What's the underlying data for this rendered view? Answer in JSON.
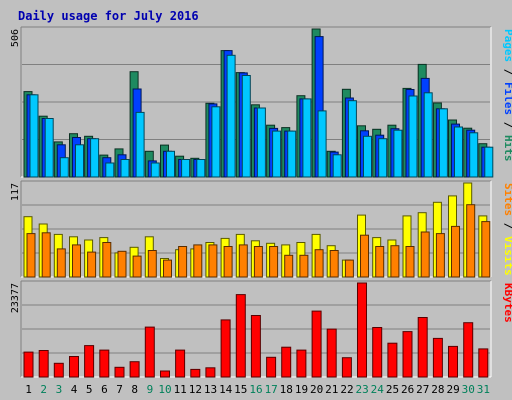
{
  "chart_data": {
    "type": "bar",
    "title": "Daily usage for July 2016",
    "days": [
      "1",
      "2",
      "3",
      "4",
      "5",
      "6",
      "7",
      "8",
      "9",
      "10",
      "11",
      "12",
      "13",
      "14",
      "15",
      "16",
      "17",
      "18",
      "19",
      "20",
      "21",
      "22",
      "23",
      "24",
      "25",
      "26",
      "27",
      "28",
      "29",
      "30",
      "31"
    ],
    "weekend_days": [
      "2",
      "3",
      "9",
      "10",
      "16",
      "17",
      "23",
      "24",
      "30",
      "31"
    ],
    "panels": [
      {
        "key": "top",
        "max_label": "506",
        "max": 506,
        "legend": [
          {
            "text": "Pages",
            "color": "#00c8ff"
          },
          {
            "text": " / ",
            "color": "#000000"
          },
          {
            "text": "Files",
            "color": "#0040ff"
          },
          {
            "text": " / ",
            "color": "#000000"
          },
          {
            "text": "Hits",
            "color": "#1e8a60"
          }
        ],
        "series": [
          {
            "name": "Hits",
            "color": "#1e8a60",
            "values": [
              292,
              208,
              120,
              148,
              139,
              75,
              96,
              360,
              88,
              109,
              71,
              64,
              252,
              432,
              357,
              247,
              177,
              169,
              278,
              506,
              88,
              300,
              175,
              163,
              177,
              303,
              385,
              253,
              195,
              167,
              114
            ]
          },
          {
            "name": "Files",
            "color": "#0040ff",
            "values": [
              281,
              200,
              110,
              135,
              131,
              66,
              76,
              301,
              55,
              88,
              60,
              60,
              250,
              432,
              356,
              236,
              166,
              157,
              267,
              480,
              85,
              270,
              158,
              143,
              165,
              299,
              337,
              233,
              181,
              160,
              102
            ]
          },
          {
            "name": "Pages",
            "color": "#00c8ff",
            "values": [
              281,
              200,
              66,
              110,
              131,
              48,
              60,
              221,
              48,
              88,
              60,
              60,
              240,
              416,
              347,
              236,
              157,
              157,
              267,
              226,
              76,
              261,
              139,
              131,
              160,
              277,
              288,
              233,
              171,
              151,
              102
            ]
          }
        ]
      },
      {
        "key": "mid",
        "max_label": "117",
        "max": 117,
        "legend": [
          {
            "text": "Sites",
            "color": "#ff8000"
          },
          {
            "text": " / ",
            "color": "#000000"
          },
          {
            "text": "Visits",
            "color": "#ffff00"
          }
        ],
        "series": [
          {
            "name": "Visits",
            "color": "#ffff00",
            "values": [
              75,
              66,
              53,
              50,
              46,
              49,
              30,
              37,
              50,
              23,
              34,
              35,
              43,
              48,
              53,
              45,
              42,
              40,
              43,
              53,
              39,
              21,
              77,
              49,
              46,
              76,
              80,
              93,
              101,
              117,
              76
            ]
          },
          {
            "name": "Sites",
            "color": "#ff8000",
            "values": [
              54,
              55,
              35,
              40,
              31,
              43,
              32,
              26,
              33,
              21,
              38,
              40,
              40,
              38,
              40,
              38,
              38,
              27,
              27,
              34,
              33,
              21,
              52,
              38,
              39,
              38,
              56,
              54,
              63,
              90,
              69
            ]
          }
        ]
      },
      {
        "key": "bot",
        "max_label": "23377",
        "max": 23377,
        "legend": [
          {
            "text": "KBytes",
            "color": "#ff0000"
          }
        ],
        "series": [
          {
            "name": "KBytes",
            "color": "#ff0000",
            "values": [
              6200,
              6600,
              3400,
              5100,
              7800,
              6700,
              2400,
              3800,
              12400,
              1500,
              6700,
              1900,
              2300,
              14200,
              20500,
              15300,
              4900,
              7400,
              6700,
              16400,
              11900,
              4800,
              23377,
              12300,
              8400,
              11300,
              14800,
              9600,
              7600,
              13500,
              7000
            ]
          }
        ]
      }
    ]
  }
}
